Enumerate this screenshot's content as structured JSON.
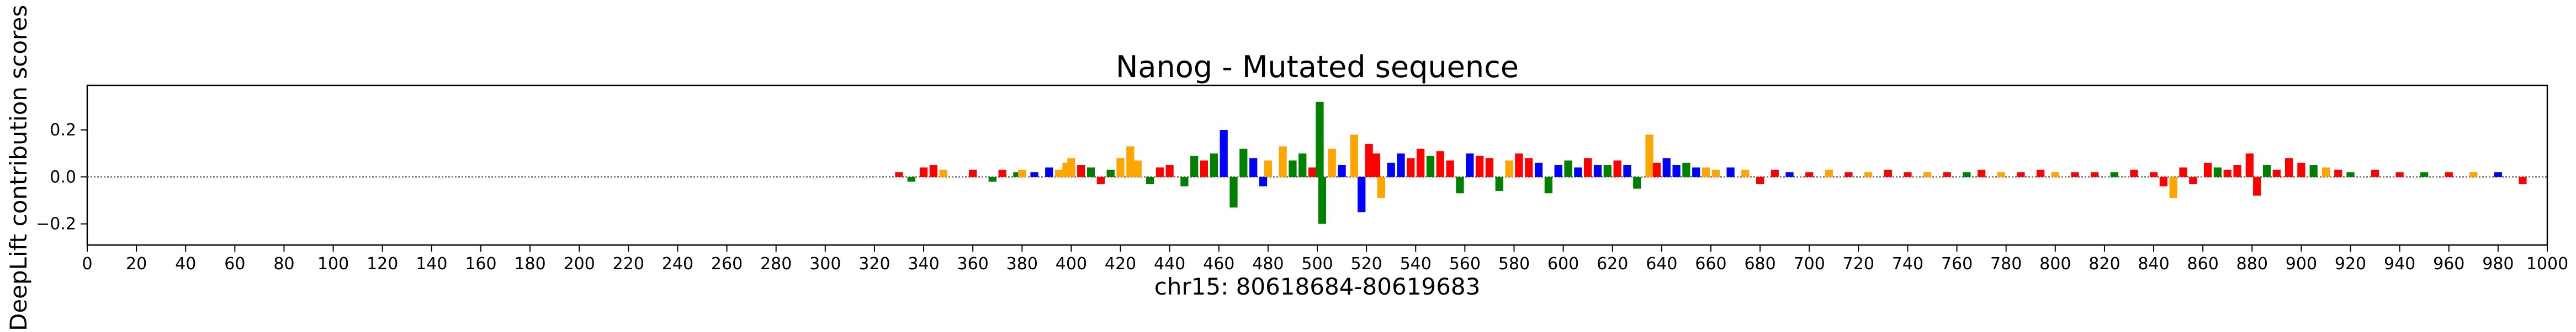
{
  "chart_data": {
    "type": "bar",
    "title": "Nanog - Mutated sequence",
    "xlabel": "chr15: 80618684-80619683",
    "ylabel": "DeepLift contribution scores",
    "xlim": [
      0,
      1000
    ],
    "ylim": [
      -0.29,
      0.39
    ],
    "xticks": [
      0,
      20,
      40,
      60,
      80,
      100,
      120,
      140,
      160,
      180,
      200,
      220,
      240,
      260,
      280,
      300,
      320,
      340,
      360,
      380,
      400,
      420,
      440,
      460,
      480,
      500,
      520,
      540,
      560,
      580,
      600,
      620,
      640,
      660,
      680,
      700,
      720,
      740,
      760,
      780,
      800,
      820,
      840,
      860,
      880,
      900,
      920,
      940,
      960,
      980,
      1000
    ],
    "yticks": [
      {
        "value": -0.2,
        "label": "−0.2"
      },
      {
        "value": 0.0,
        "label": "0.0"
      },
      {
        "value": 0.2,
        "label": "0.2"
      }
    ],
    "legend": "none",
    "grid": false,
    "colors": {
      "A": "#008000",
      "C": "#0000ff",
      "G": "#ffa500",
      "T": "#ff0000"
    },
    "notable_values": [
      {
        "x": 462,
        "y": 0.2
      },
      {
        "x": 466,
        "y": -0.13
      },
      {
        "x": 501,
        "y": 0.32
      },
      {
        "x": 502,
        "y": -0.2
      },
      {
        "x": 515,
        "y": 0.18
      },
      {
        "x": 518,
        "y": -0.15
      },
      {
        "x": 635,
        "y": 0.18
      },
      {
        "x": 848,
        "y": -0.09
      },
      {
        "x": 879,
        "y": 0.1
      },
      {
        "x": 882,
        "y": -0.08
      }
    ],
    "series": [
      {
        "name": "",
        "x": [
          330,
          335,
          340,
          344,
          348,
          360,
          368,
          372,
          378,
          380,
          385,
          391,
          395,
          398,
          400,
          404,
          408,
          412,
          416,
          420,
          424,
          427,
          432,
          436,
          440,
          446,
          450,
          454,
          458,
          462,
          466,
          470,
          474,
          478,
          480,
          486,
          490,
          494,
          498,
          501,
          502,
          506,
          510,
          515,
          518,
          521,
          524,
          526,
          530,
          534,
          538,
          542,
          546,
          550,
          554,
          558,
          562,
          566,
          570,
          574,
          578,
          582,
          586,
          590,
          594,
          598,
          602,
          606,
          610,
          614,
          618,
          622,
          626,
          630,
          635,
          638,
          642,
          646,
          650,
          654,
          658,
          662,
          668,
          674,
          680,
          686,
          692,
          700,
          708,
          716,
          724,
          732,
          740,
          748,
          756,
          764,
          770,
          778,
          786,
          794,
          800,
          808,
          816,
          824,
          832,
          840,
          844,
          848,
          852,
          856,
          862,
          866,
          870,
          874,
          879,
          882,
          886,
          890,
          895,
          900,
          905,
          910,
          915,
          920,
          930,
          940,
          950,
          960,
          970,
          980,
          990
        ],
        "values": [
          0.02,
          -0.02,
          0.04,
          0.05,
          0.03,
          0.03,
          -0.02,
          0.03,
          0.02,
          0.03,
          0.02,
          0.04,
          0.03,
          0.06,
          0.08,
          0.05,
          0.04,
          -0.03,
          0.03,
          0.08,
          0.13,
          0.07,
          -0.03,
          0.04,
          0.05,
          -0.04,
          0.09,
          0.07,
          0.1,
          0.2,
          -0.13,
          0.12,
          0.08,
          -0.04,
          0.07,
          0.13,
          0.07,
          0.1,
          0.04,
          0.32,
          -0.2,
          0.12,
          0.05,
          0.18,
          -0.15,
          0.14,
          0.1,
          -0.09,
          0.06,
          0.1,
          0.08,
          0.12,
          0.09,
          0.11,
          0.07,
          -0.07,
          0.1,
          0.09,
          0.08,
          -0.06,
          0.07,
          0.1,
          0.08,
          0.06,
          -0.07,
          0.05,
          0.07,
          0.04,
          0.08,
          0.05,
          0.05,
          0.07,
          0.05,
          -0.05,
          0.18,
          0.06,
          0.08,
          0.05,
          0.06,
          0.04,
          0.04,
          0.03,
          0.04,
          0.03,
          -0.03,
          0.03,
          0.02,
          0.02,
          0.03,
          0.02,
          0.02,
          0.03,
          0.02,
          0.02,
          0.02,
          0.02,
          0.03,
          0.02,
          0.02,
          0.03,
          0.02,
          0.02,
          0.02,
          0.02,
          0.03,
          0.02,
          -0.04,
          -0.09,
          0.04,
          -0.03,
          0.06,
          0.04,
          0.03,
          0.05,
          0.1,
          -0.08,
          0.05,
          0.03,
          0.08,
          0.06,
          0.05,
          0.04,
          0.03,
          0.02,
          0.03,
          0.02,
          0.02,
          0.02,
          0.02,
          0.02,
          -0.03
        ],
        "bases": [
          "T",
          "A",
          "T",
          "T",
          "G",
          "T",
          "A",
          "T",
          "A",
          "G",
          "C",
          "C",
          "G",
          "G",
          "G",
          "T",
          "A",
          "T",
          "A",
          "G",
          "G",
          "G",
          "A",
          "T",
          "T",
          "A",
          "A",
          "T",
          "A",
          "C",
          "A",
          "A",
          "C",
          "C",
          "G",
          "G",
          "A",
          "A",
          "T",
          "A",
          "A",
          "G",
          "C",
          "G",
          "C",
          "T",
          "T",
          "G",
          "C",
          "C",
          "T",
          "T",
          "A",
          "T",
          "T",
          "A",
          "C",
          "T",
          "T",
          "A",
          "G",
          "T",
          "T",
          "C",
          "A",
          "C",
          "A",
          "C",
          "T",
          "C",
          "A",
          "T",
          "C",
          "A",
          "G",
          "T",
          "C",
          "C",
          "A",
          "C",
          "G",
          "G",
          "C",
          "G",
          "T",
          "T",
          "C",
          "T",
          "G",
          "T",
          "G",
          "T",
          "T",
          "G",
          "T",
          "A",
          "T",
          "G",
          "T",
          "T",
          "G",
          "T",
          "T",
          "A",
          "T",
          "T",
          "T",
          "G",
          "T",
          "T",
          "T",
          "A",
          "T",
          "T",
          "T",
          "T",
          "A",
          "T",
          "T",
          "T",
          "A",
          "G",
          "T",
          "A",
          "T",
          "T",
          "A",
          "T",
          "G",
          "C",
          "T"
        ]
      }
    ]
  }
}
